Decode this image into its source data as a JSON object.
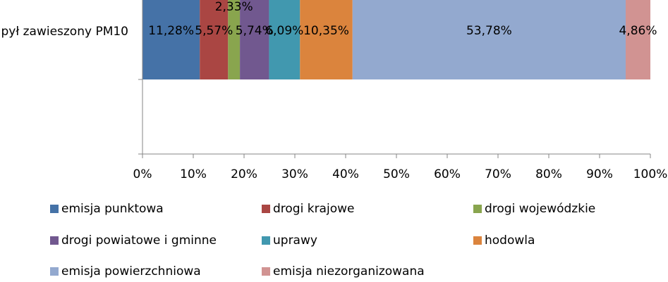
{
  "chart_data": {
    "type": "bar",
    "orientation": "horizontal",
    "stacked": "percent",
    "categories": [
      "pył zawieszony PM10"
    ],
    "xlim": [
      0,
      100
    ],
    "x_ticks": [
      "0%",
      "10%",
      "20%",
      "30%",
      "40%",
      "50%",
      "60%",
      "70%",
      "80%",
      "90%",
      "100%"
    ],
    "grid": false,
    "legend_position": "bottom",
    "series": [
      {
        "name": "emisja punktowa",
        "values": [
          11.28
        ],
        "label": "11,28%",
        "color": "#4572A7"
      },
      {
        "name": "drogi krajowe",
        "values": [
          5.57
        ],
        "label": "5,57%",
        "color": "#AA4643"
      },
      {
        "name": "drogi wojewódzkie",
        "values": [
          2.33
        ],
        "label": "2,33%",
        "color": "#89A54E"
      },
      {
        "name": "drogi powiatowe i gminne",
        "values": [
          5.74
        ],
        "label": "5,74%",
        "color": "#71588F"
      },
      {
        "name": "uprawy",
        "values": [
          6.09
        ],
        "label": "6,09%",
        "color": "#4198AF"
      },
      {
        "name": "hodowla",
        "values": [
          10.35
        ],
        "label": "10,35%",
        "color": "#DB843D"
      },
      {
        "name": "emisja powierzchniowa",
        "values": [
          53.78
        ],
        "label": "53,78%",
        "color": "#93A9CF"
      },
      {
        "name": "emisja niezorganizowana",
        "values": [
          4.86
        ],
        "label": "4,86%",
        "color": "#D19392"
      }
    ]
  }
}
